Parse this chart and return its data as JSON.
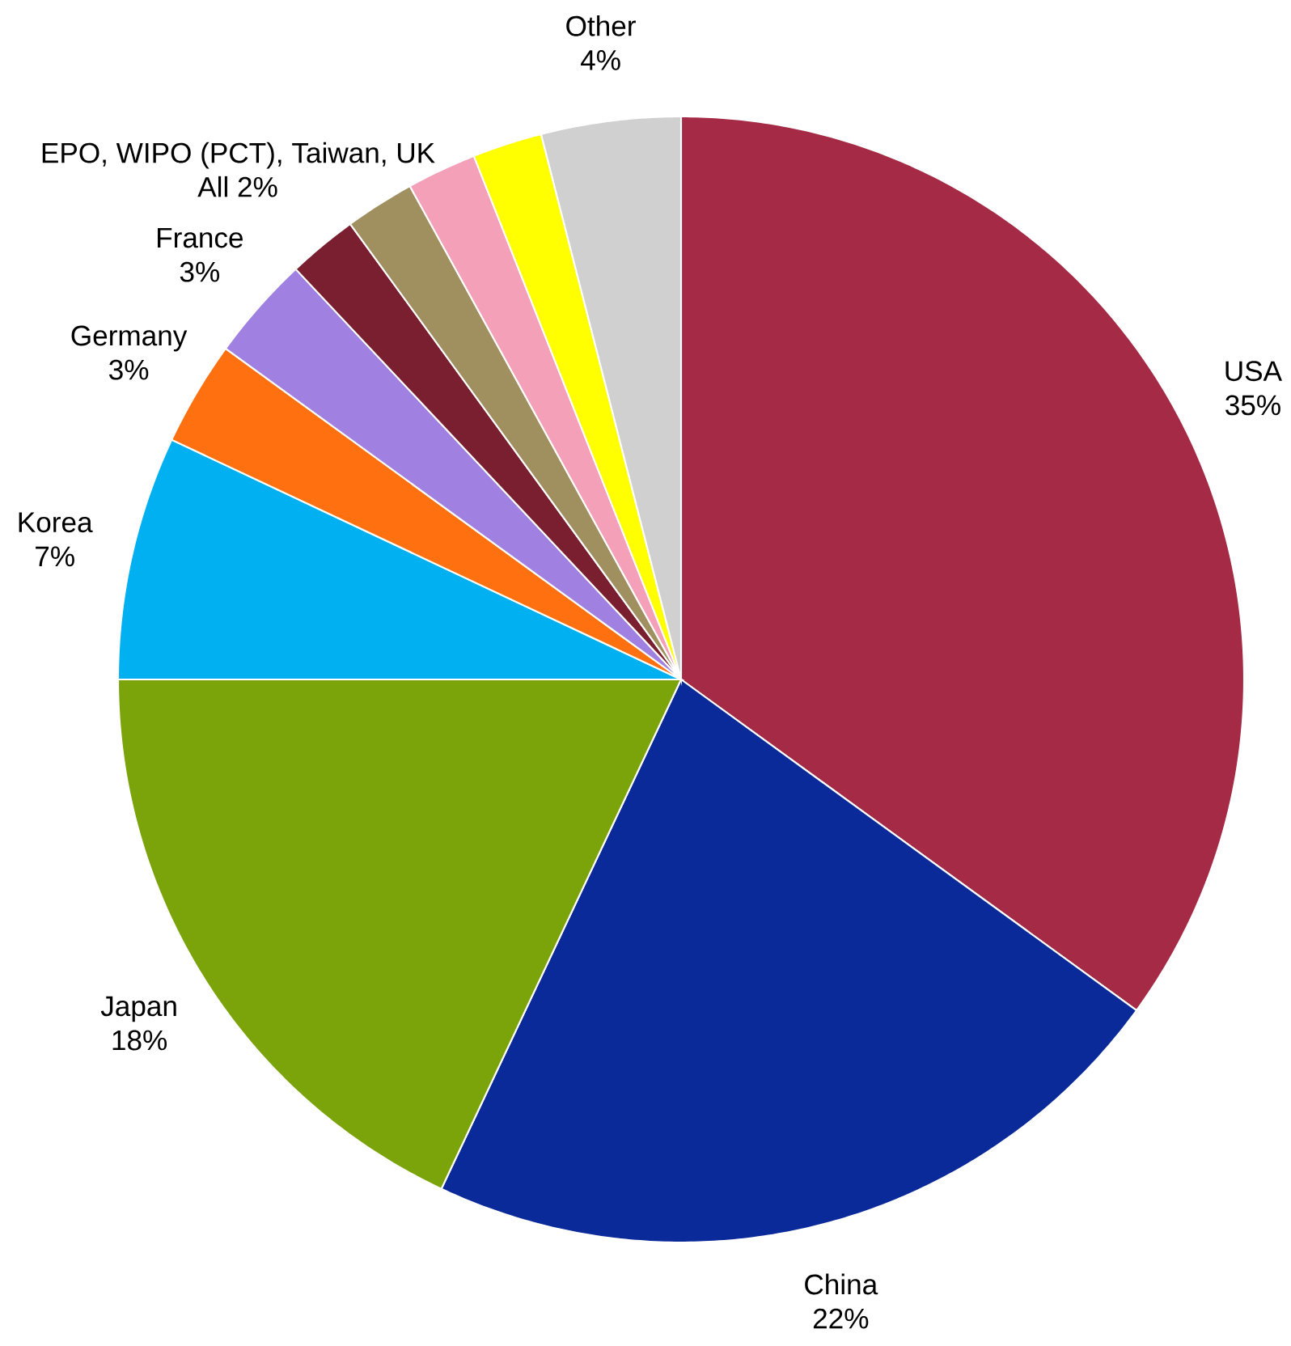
{
  "chart_data": {
    "type": "pie",
    "categories": [
      "USA",
      "China",
      "Japan",
      "Korea",
      "Germany",
      "France",
      null,
      null,
      null,
      null,
      "Other"
    ],
    "values": [
      35,
      22,
      18,
      7,
      3,
      3,
      2,
      2,
      2,
      2,
      4
    ],
    "value_labels": [
      "35%",
      "22%",
      "18%",
      "7%",
      "3%",
      "3%",
      null,
      null,
      null,
      null,
      "4%"
    ],
    "colors": [
      "#a52a45",
      "#0a2a9a",
      "#7ba30a",
      "#00b0f0",
      "#ff7010",
      "#a080e0",
      "#7a1f30",
      "#a09060",
      "#f4a0b8",
      "#ffff00",
      "#d0d0d0"
    ],
    "annotations": [
      "EPO, WIPO (PCT), Taiwan, UK",
      "All 2%"
    ]
  }
}
